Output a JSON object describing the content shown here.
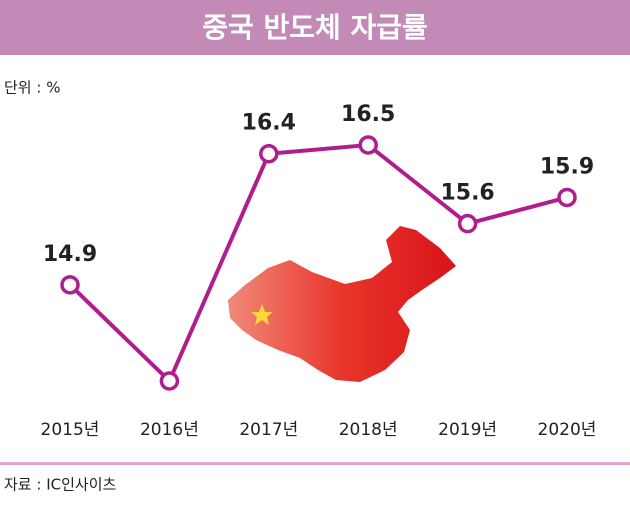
{
  "chart_data": {
    "type": "line",
    "title": "중국 반도체 자급률",
    "unit_label": "단위 : %",
    "source": "자료 : IC인사이츠",
    "categories": [
      "2015년",
      "2016년",
      "2017년",
      "2018년",
      "2019년",
      "2020년"
    ],
    "values": [
      14.9,
      13.8,
      16.4,
      16.5,
      15.6,
      15.9
    ],
    "value_labels": [
      "14.9",
      null,
      "16.4",
      "16.5",
      "15.6",
      "15.9"
    ],
    "color": "#b01e8e",
    "header_color": "#c389b7"
  }
}
